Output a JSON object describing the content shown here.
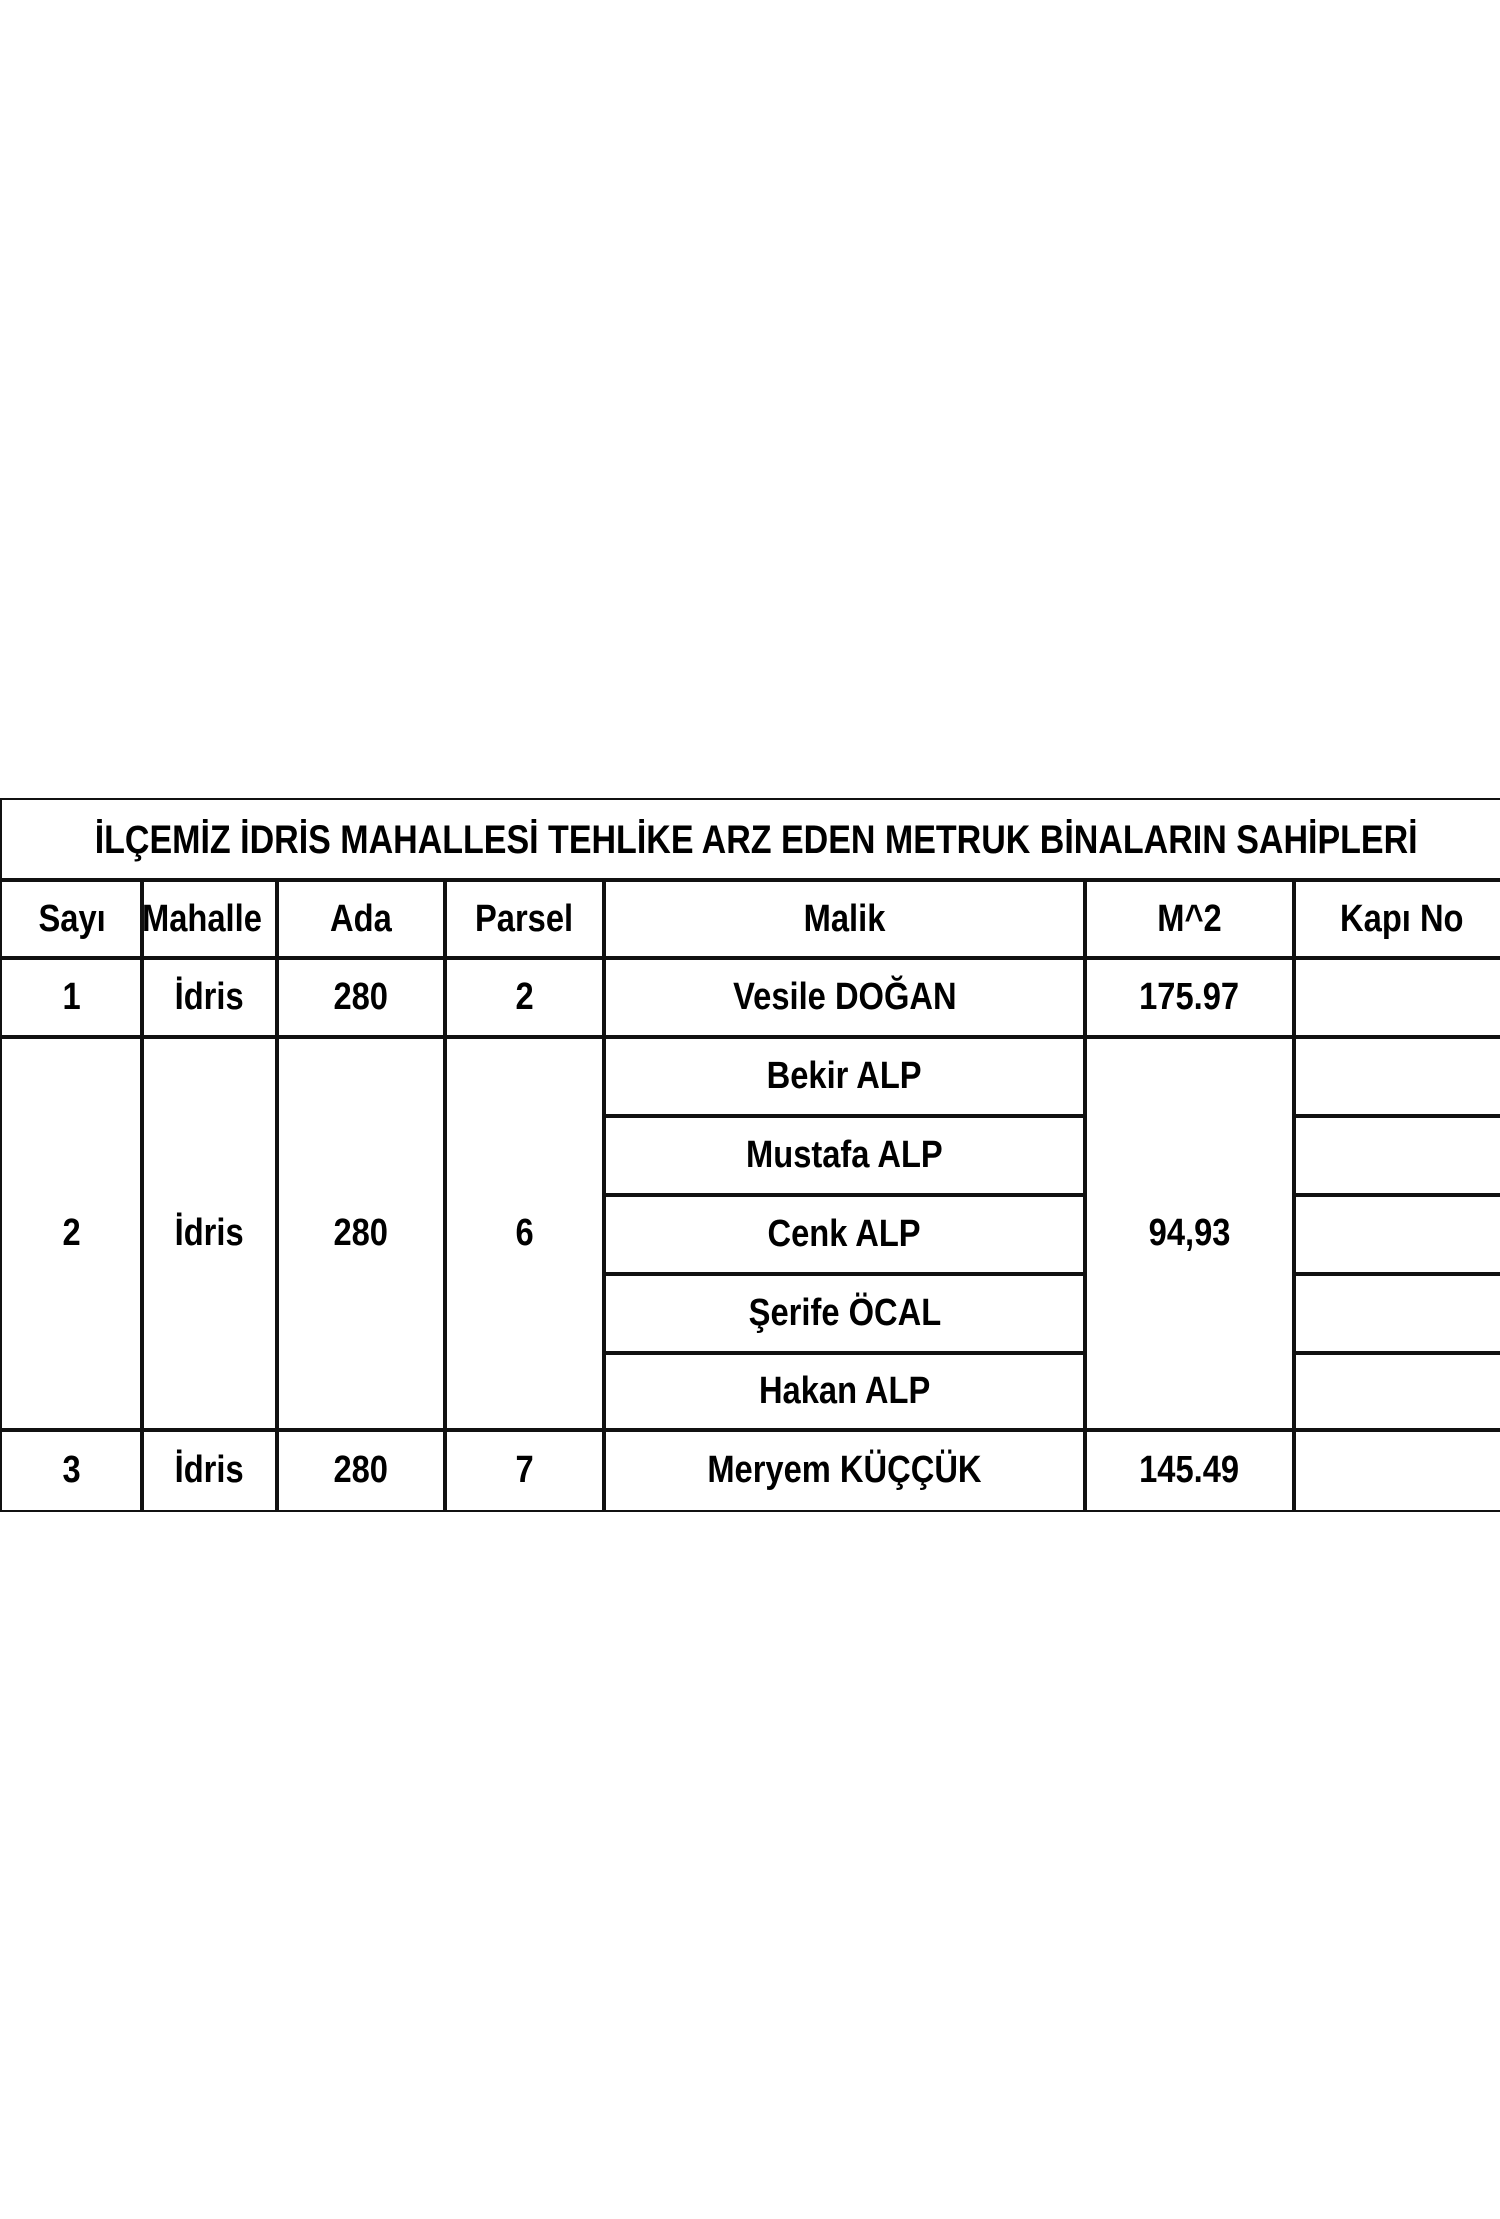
{
  "title": "İLÇEMİZ İDRİS MAHALLESİ TEHLİKE ARZ EDEN METRUK BİNALARIN SAHİPLERİ",
  "headers": [
    "Sayı",
    "Mahalle",
    "Ada",
    "Parsel",
    "Malik",
    "M^2",
    "Kapı No"
  ],
  "rows": [
    {
      "sayi": "1",
      "mahalle": "İdris",
      "ada": "280",
      "parsel": "2",
      "malik": [
        "Vesile DOĞAN"
      ],
      "m2": "175.97",
      "kapi_no": ""
    },
    {
      "sayi": "2",
      "mahalle": "İdris",
      "ada": "280",
      "parsel": "6",
      "malik": [
        "Bekir ALP",
        "Mustafa ALP",
        "Cenk ALP",
        "Şerife ÖCAL",
        "Hakan ALP"
      ],
      "m2": "94,93",
      "kapi_no": ""
    },
    {
      "sayi": "3",
      "mahalle": "İdris",
      "ada": "280",
      "parsel": "7",
      "malik": [
        "Meryem KÜÇÇÜK"
      ],
      "m2": "145.49",
      "kapi_no": ""
    }
  ]
}
